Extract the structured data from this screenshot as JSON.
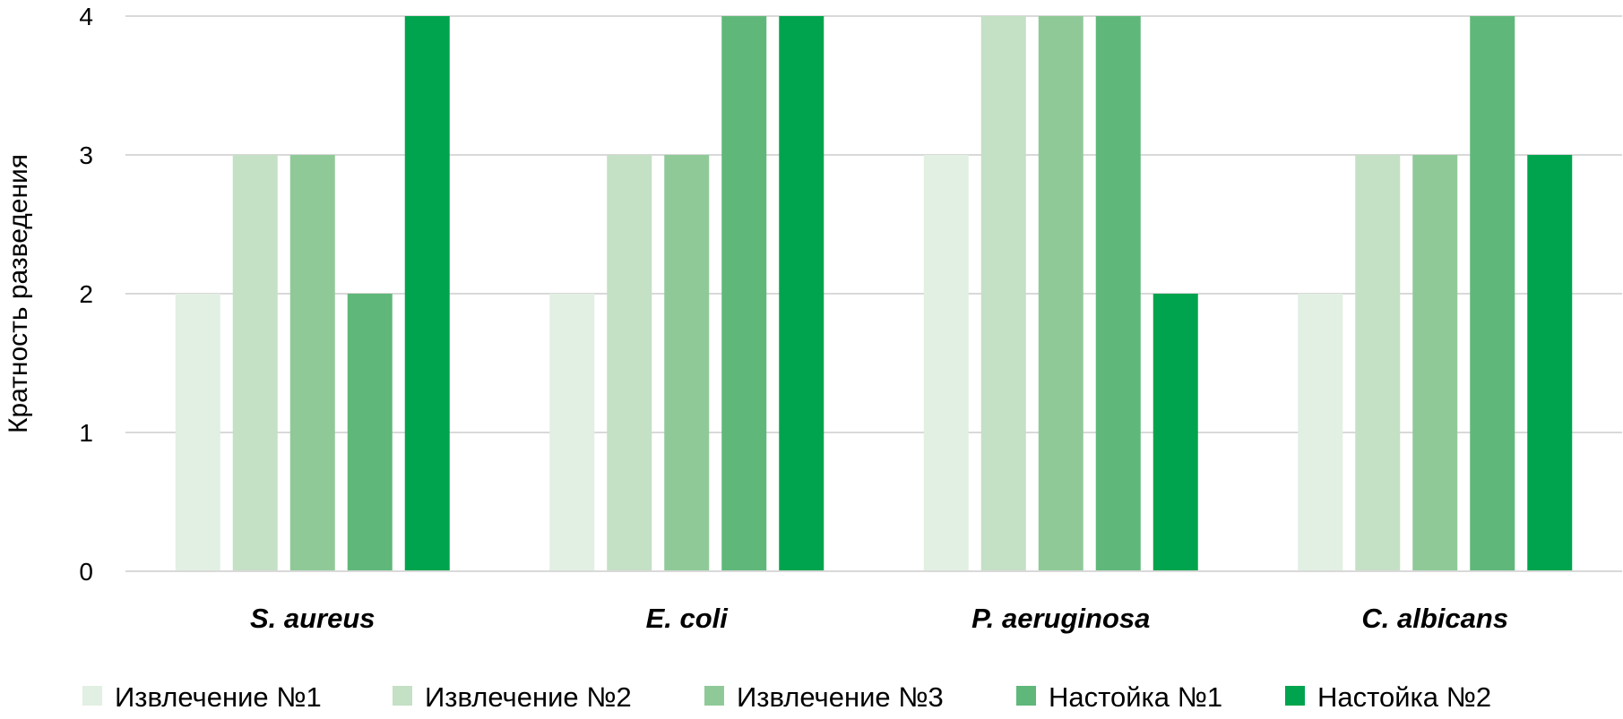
{
  "chart_data": {
    "type": "bar",
    "title": "",
    "xlabel": "",
    "ylabel": "Кратность разведения",
    "ylim": [
      0,
      4
    ],
    "yticks": [
      0,
      1,
      2,
      3,
      4
    ],
    "grid": true,
    "legend_position": "bottom",
    "categories": [
      "S. aureus",
      "E. coli",
      "P. aeruginosa",
      "C. albicans"
    ],
    "series": [
      {
        "name": "Извлечение №1",
        "color": "#e2efe3",
        "values": [
          2,
          2,
          3,
          2
        ]
      },
      {
        "name": "Извлечение №2",
        "color": "#c4e0c5",
        "values": [
          3,
          3,
          4,
          3
        ]
      },
      {
        "name": "Извлечение №3",
        "color": "#90c998",
        "values": [
          3,
          3,
          4,
          3
        ]
      },
      {
        "name": "Настойка №1",
        "color": "#5fb87a",
        "values": [
          2,
          4,
          4,
          4
        ]
      },
      {
        "name": "Настойка №2",
        "color": "#00a44e",
        "values": [
          4,
          4,
          2,
          3
        ]
      }
    ]
  }
}
